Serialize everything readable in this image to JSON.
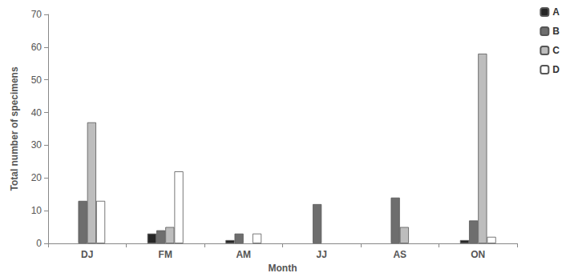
{
  "chart_data": {
    "type": "bar",
    "x_label": "Month",
    "y_label": "Total number of specimens",
    "categories": [
      "DJ",
      "FM",
      "AM",
      "JJ",
      "AS",
      "ON"
    ],
    "series": [
      {
        "name": "A",
        "color": "#262626",
        "values": [
          0,
          3,
          1,
          0,
          0,
          1
        ]
      },
      {
        "name": "B",
        "color": "#6e6e6e",
        "values": [
          13,
          4,
          3,
          12,
          14,
          7
        ]
      },
      {
        "name": "C",
        "color": "#bdbdbd",
        "values": [
          37,
          5,
          0,
          0,
          5,
          58
        ]
      },
      {
        "name": "D",
        "color": "#ffffff",
        "values": [
          13,
          22,
          3,
          0,
          0,
          2
        ]
      }
    ],
    "ylim": [
      0,
      70
    ],
    "yticks": [
      0,
      10,
      20,
      30,
      40,
      50,
      60,
      70
    ],
    "grid": false,
    "legend": "upper right"
  }
}
